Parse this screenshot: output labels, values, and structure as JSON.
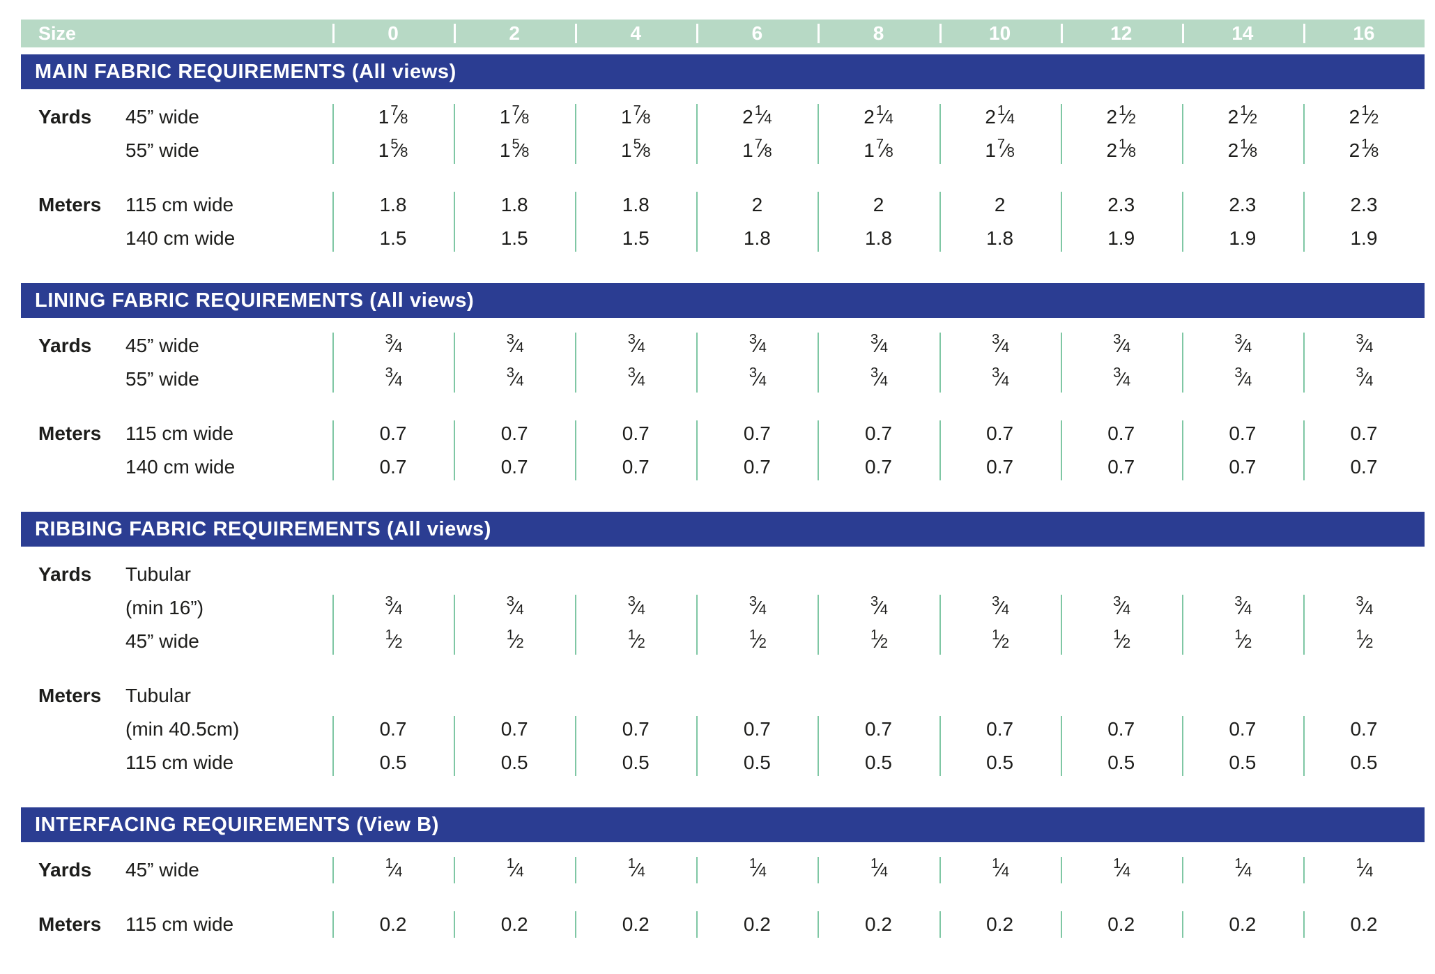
{
  "header": {
    "size_label": "Size",
    "sizes": [
      "0",
      "2",
      "4",
      "6",
      "8",
      "10",
      "12",
      "14",
      "16"
    ]
  },
  "colors": {
    "size_header_bg": "#b7d9c5",
    "section_bar_bg": "#2b3d92",
    "separator_line": "#7fc7a4",
    "header_text": "#ffffff",
    "body_text": "#1d1d1b"
  },
  "sections": [
    {
      "title": "MAIN FABRIC REQUIREMENTS (All views)",
      "blocks": [
        {
          "group": "Yards",
          "rows": [
            {
              "label": "45” wide",
              "values": [
                "1⅞",
                "1⅞",
                "1⅞",
                "2¼",
                "2¼",
                "2¼",
                "2½",
                "2½",
                "2½"
              ]
            },
            {
              "label": "55” wide",
              "values": [
                "1⅝",
                "1⅝",
                "1⅝",
                "1⅞",
                "1⅞",
                "1⅞",
                "2⅛",
                "2⅛",
                "2⅛"
              ]
            }
          ]
        },
        {
          "group": "Meters",
          "rows": [
            {
              "label": "115 cm wide",
              "values": [
                "1.8",
                "1.8",
                "1.8",
                "2",
                "2",
                "2",
                "2.3",
                "2.3",
                "2.3"
              ]
            },
            {
              "label": "140 cm wide",
              "values": [
                "1.5",
                "1.5",
                "1.5",
                "1.8",
                "1.8",
                "1.8",
                "1.9",
                "1.9",
                "1.9"
              ]
            }
          ]
        }
      ]
    },
    {
      "title": "LINING FABRIC REQUIREMENTS (All views)",
      "blocks": [
        {
          "group": "Yards",
          "rows": [
            {
              "label": "45” wide",
              "values": [
                "¾",
                "¾",
                "¾",
                "¾",
                "¾",
                "¾",
                "¾",
                "¾",
                "¾"
              ]
            },
            {
              "label": "55” wide",
              "values": [
                "¾",
                "¾",
                "¾",
                "¾",
                "¾",
                "¾",
                "¾",
                "¾",
                "¾"
              ]
            }
          ]
        },
        {
          "group": "Meters",
          "rows": [
            {
              "label": "115 cm wide",
              "values": [
                "0.7",
                "0.7",
                "0.7",
                "0.7",
                "0.7",
                "0.7",
                "0.7",
                "0.7",
                "0.7"
              ]
            },
            {
              "label": "140 cm wide",
              "values": [
                "0.7",
                "0.7",
                "0.7",
                "0.7",
                "0.7",
                "0.7",
                "0.7",
                "0.7",
                "0.7"
              ]
            }
          ]
        }
      ]
    },
    {
      "title": "RIBBING FABRIC REQUIREMENTS (All views)",
      "blocks": [
        {
          "group": "Yards",
          "pre_label": "Tubular",
          "rows": [
            {
              "label": "(min 16”)",
              "values": [
                "¾",
                "¾",
                "¾",
                "¾",
                "¾",
                "¾",
                "¾",
                "¾",
                "¾"
              ]
            },
            {
              "label": "45” wide",
              "values": [
                "½",
                "½",
                "½",
                "½",
                "½",
                "½",
                "½",
                "½",
                "½"
              ]
            }
          ]
        },
        {
          "group": "Meters",
          "pre_label": "Tubular",
          "rows": [
            {
              "label": "(min 40.5cm)",
              "values": [
                "0.7",
                "0.7",
                "0.7",
                "0.7",
                "0.7",
                "0.7",
                "0.7",
                "0.7",
                "0.7"
              ]
            },
            {
              "label": "115 cm wide",
              "values": [
                "0.5",
                "0.5",
                "0.5",
                "0.5",
                "0.5",
                "0.5",
                "0.5",
                "0.5",
                "0.5"
              ]
            }
          ]
        }
      ]
    },
    {
      "title": "INTERFACING REQUIREMENTS (View B)",
      "blocks": [
        {
          "group": "Yards",
          "rows": [
            {
              "label": "45” wide",
              "values": [
                "¼",
                "¼",
                "¼",
                "¼",
                "¼",
                "¼",
                "¼",
                "¼",
                "¼"
              ]
            }
          ]
        },
        {
          "group": "Meters",
          "rows": [
            {
              "label": "115 cm wide",
              "values": [
                "0.2",
                "0.2",
                "0.2",
                "0.2",
                "0.2",
                "0.2",
                "0.2",
                "0.2",
                "0.2"
              ]
            }
          ]
        }
      ]
    }
  ]
}
